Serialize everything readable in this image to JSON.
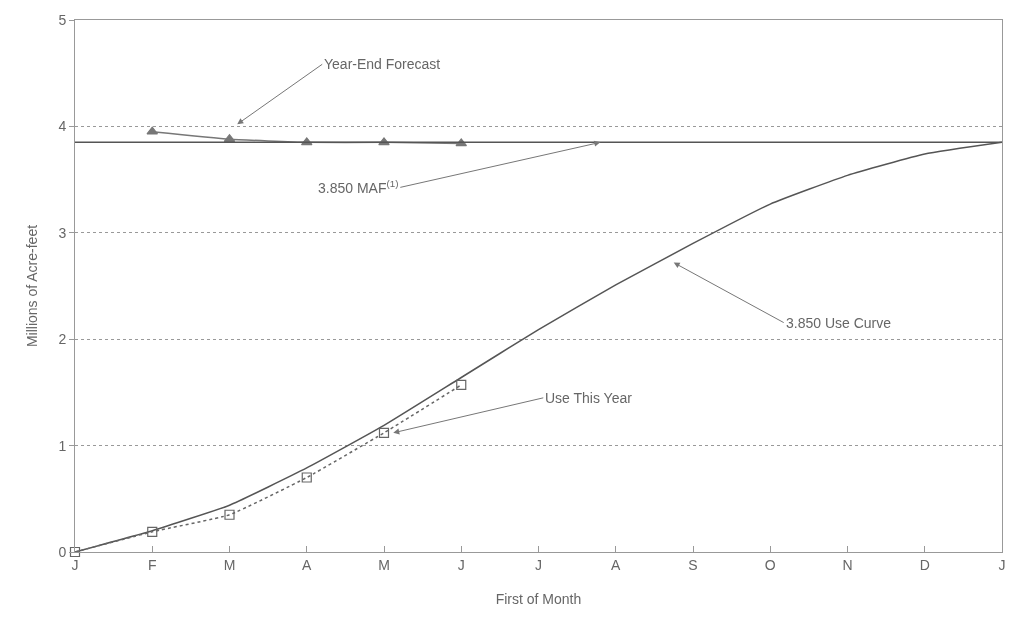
{
  "chart_data": {
    "type": "line",
    "xlabel": "First of Month",
    "ylabel": "Millions of Acre-feet",
    "categories": [
      "J",
      "F",
      "M",
      "A",
      "M",
      "J",
      "J",
      "A",
      "S",
      "O",
      "N",
      "D",
      "J"
    ],
    "series": [
      {
        "color": "#555555",
        "values": [
          0,
          0.2,
          0.44,
          0.79,
          1.19,
          1.64,
          2.09,
          2.51,
          2.9,
          3.27,
          3.54,
          3.74,
          3.85
        ],
        "marker": "none",
        "line_style": "solid"
      },
      {
        "color": "#666666",
        "values": [
          0,
          0.19,
          0.35,
          0.7,
          1.12,
          1.57,
          null,
          null,
          null,
          null,
          null,
          null,
          null
        ],
        "marker": "square",
        "line_style": "dotted"
      },
      {
        "color": "#777777",
        "values": [
          null,
          3.95,
          3.88,
          3.85,
          3.85,
          3.84,
          null,
          null,
          null,
          null,
          null,
          null,
          null
        ],
        "marker": "triangle",
        "line_style": "solid"
      }
    ],
    "ref_lines": [
      {
        "axis": "y",
        "value": 3.85,
        "color": "#555555"
      }
    ],
    "annotations": [
      "Year-End Forecast",
      {
        "text": "3.850 MAF$^{(1)}$",
        "y": 3.85
      },
      "3.850 Use Curve",
      "Use This Year"
    ],
    "ylim": [
      0,
      5
    ],
    "yticks": [
      0,
      1,
      2,
      3,
      4,
      5
    ],
    "grid": "y"
  }
}
